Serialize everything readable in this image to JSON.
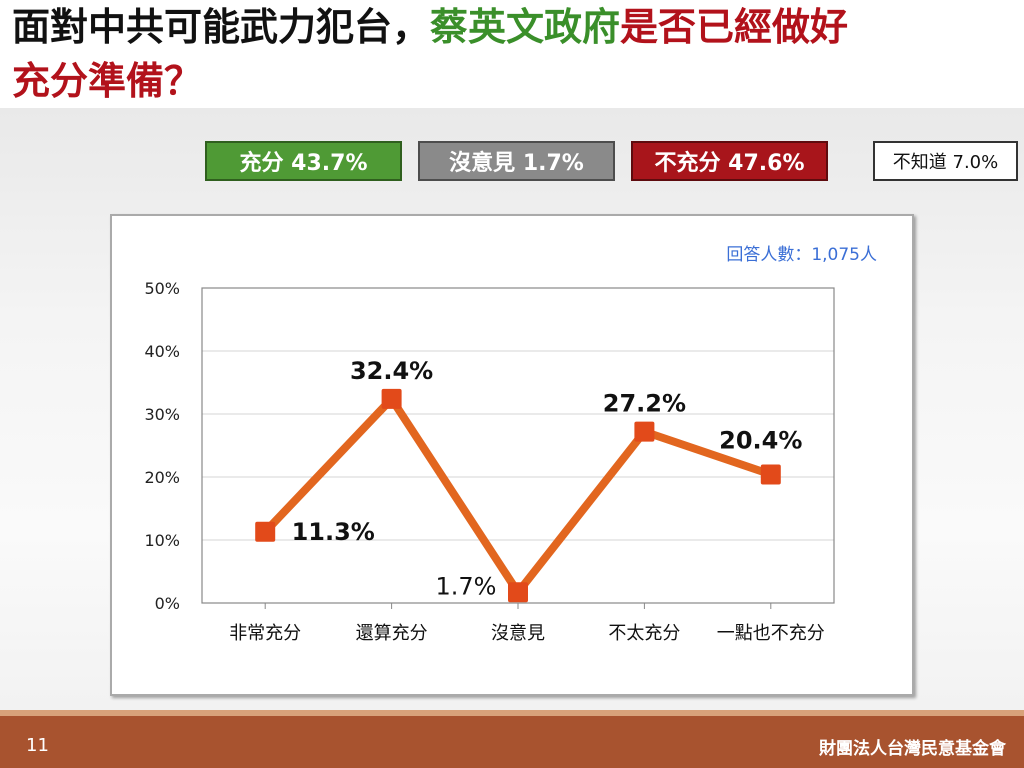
{
  "title": {
    "part1": "面對中共可能武力犯台，",
    "part2": "蔡英文政府",
    "part3": "是否已經做好",
    "line2": "充分準備？"
  },
  "summary": {
    "sufficient": "充分 43.7%",
    "no_opinion": "沒意見 1.7%",
    "insufficient": "不充分 47.6%",
    "dont_know": "不知道 7.0%"
  },
  "colors": {
    "title_green": "#3a8f2a",
    "title_red": "#b2121b",
    "box_green": "#4f9a35",
    "box_gray": "#8a8a8a",
    "box_red": "#a8151b",
    "line": "#e2661f",
    "marker": "#e24a1a",
    "respondents": "#3b6fd6",
    "footer": "#a8532f"
  },
  "chart_data": {
    "type": "line",
    "categories": [
      "非常充分",
      "還算充分",
      "沒意見",
      "不太充分",
      "一點也不充分"
    ],
    "series": [
      {
        "values": [
          11.3,
          32.4,
          1.7,
          27.2,
          20.4
        ]
      }
    ],
    "data_labels": [
      "11.3%",
      "32.4%",
      "1.7%",
      "27.2%",
      "20.4%"
    ],
    "y_ticks": [
      "0%",
      "10%",
      "20%",
      "30%",
      "40%",
      "50%"
    ],
    "ylim": [
      0,
      50
    ],
    "grid": true,
    "annotation": "回答人數：1,075人"
  },
  "footer": {
    "page_number": "11",
    "organization": "財團法人台灣民意基金會"
  }
}
